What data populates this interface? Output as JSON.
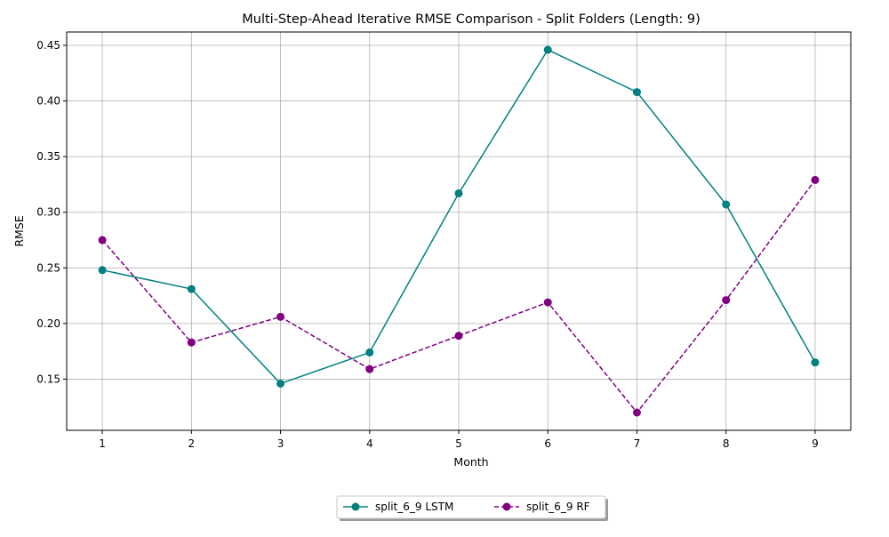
{
  "chart_data": {
    "type": "line",
    "title": "Multi-Step-Ahead Iterative RMSE Comparison - Split Folders (Length: 9)",
    "xlabel": "Month",
    "ylabel": "RMSE",
    "x": [
      1,
      2,
      3,
      4,
      5,
      6,
      7,
      8,
      9
    ],
    "xlim": [
      0.6,
      9.4
    ],
    "ylim": [
      0.104,
      0.462
    ],
    "yticks": [
      0.15,
      0.2,
      0.25,
      0.3,
      0.35,
      0.4,
      0.45
    ],
    "ytick_labels": [
      "0.15",
      "0.20",
      "0.25",
      "0.30",
      "0.35",
      "0.40",
      "0.45"
    ],
    "xtick_labels": [
      "1",
      "2",
      "3",
      "4",
      "5",
      "6",
      "7",
      "8",
      "9"
    ],
    "grid": true,
    "legend_placement": "bottom-center",
    "series": [
      {
        "name": "split_6_9 LSTM",
        "color": "#008080",
        "line_style": "solid",
        "marker": "circle",
        "values": [
          0.248,
          0.231,
          0.146,
          0.174,
          0.317,
          0.446,
          0.408,
          0.307,
          0.165
        ]
      },
      {
        "name": "split_6_9 RF",
        "color": "#800080",
        "line_style": "dashed",
        "marker": "circle",
        "values": [
          0.275,
          0.183,
          0.206,
          0.159,
          0.189,
          0.219,
          0.12,
          0.221,
          0.329
        ]
      }
    ]
  }
}
